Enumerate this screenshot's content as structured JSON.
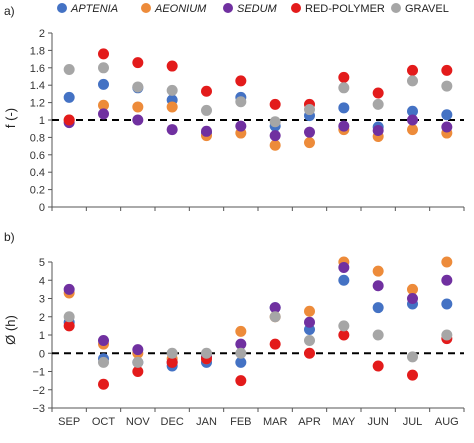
{
  "chart_data": [
    {
      "type": "scatter",
      "panel_label": "a)",
      "ylabel": "f (-)",
      "ylim": [
        0,
        2
      ],
      "yticks": [
        "0",
        "0.2",
        "0.4",
        "0.6",
        "0.8",
        "1",
        "1.2",
        "1.4",
        "1.6",
        "1.8",
        "2"
      ],
      "categories": [
        "SEP",
        "OCT",
        "NOV",
        "DEC",
        "JAN",
        "FEB",
        "MAR",
        "APR",
        "MAY",
        "JUN",
        "JUL",
        "AUG"
      ],
      "reference_line": 1,
      "legend": [
        {
          "name": "APTENIA",
          "italic": true
        },
        {
          "name": "AEONIUM",
          "italic": true
        },
        {
          "name": "SEDUM",
          "italic": true
        },
        {
          "name": "RED-POLYMER",
          "italic": false
        },
        {
          "name": "GRAVEL",
          "italic": false
        }
      ],
      "series": [
        {
          "name": "APTENIA",
          "color": "#4472c4",
          "values": [
            1.26,
            1.41,
            1.37,
            1.23,
            0.85,
            1.26,
            0.93,
            1.05,
            1.14,
            0.92,
            1.1,
            1.06
          ]
        },
        {
          "name": "AEONIUM",
          "color": "#ed8b3a",
          "values": [
            1.0,
            1.17,
            1.15,
            1.15,
            0.82,
            0.85,
            0.71,
            0.74,
            0.89,
            0.81,
            0.89,
            0.85
          ]
        },
        {
          "name": "SEDUM",
          "color": "#7030a0",
          "values": [
            0.97,
            1.07,
            1.0,
            0.89,
            0.87,
            0.93,
            0.82,
            0.86,
            0.93,
            0.88,
            1.0,
            0.92
          ]
        },
        {
          "name": "RED-POLYMER",
          "color": "#e31b1b",
          "values": [
            1.0,
            1.76,
            1.66,
            1.62,
            1.33,
            1.45,
            1.18,
            1.18,
            1.49,
            1.31,
            1.57,
            1.57
          ]
        },
        {
          "name": "GRAVEL",
          "color": "#a6a6a6",
          "values": [
            1.58,
            1.6,
            1.38,
            1.34,
            1.11,
            1.21,
            0.98,
            1.12,
            1.37,
            1.18,
            1.45,
            1.39
          ]
        }
      ]
    },
    {
      "type": "scatter",
      "panel_label": "b)",
      "ylabel": "Ø (h)",
      "ylim": [
        -3,
        5
      ],
      "yticks": [
        "−3",
        "−2",
        "−1",
        "0",
        "1",
        "2",
        "3",
        "4",
        "5"
      ],
      "categories": [
        "SEP",
        "OCT",
        "NOV",
        "DEC",
        "JAN",
        "FEB",
        "MAR",
        "APR",
        "MAY",
        "JUN",
        "JUL",
        "AUG"
      ],
      "reference_line": 0,
      "series": [
        {
          "name": "APTENIA",
          "color": "#4472c4",
          "values": [
            1.7,
            -0.3,
            -0.5,
            -0.7,
            -0.5,
            -0.5,
            2.5,
            1.3,
            4.0,
            2.5,
            2.7,
            2.7
          ]
        },
        {
          "name": "AEONIUM",
          "color": "#ed8b3a",
          "values": [
            3.3,
            0.5,
            0.0,
            -0.3,
            -0.3,
            1.2,
            2.0,
            2.3,
            5.0,
            4.5,
            3.5,
            5.0
          ]
        },
        {
          "name": "SEDUM",
          "color": "#7030a0",
          "values": [
            3.5,
            0.7,
            0.2,
            -0.5,
            -0.2,
            0.5,
            2.5,
            1.7,
            4.7,
            3.7,
            3.0,
            4.0
          ]
        },
        {
          "name": "RED-POLYMER",
          "color": "#e31b1b",
          "values": [
            1.5,
            -1.7,
            -1.0,
            -0.5,
            -0.3,
            -1.5,
            0.5,
            0.0,
            1.0,
            -0.7,
            -1.2,
            0.8
          ]
        },
        {
          "name": "GRAVEL",
          "color": "#a6a6a6",
          "values": [
            2.0,
            -0.5,
            -0.5,
            0.0,
            0.0,
            0.0,
            2.0,
            0.7,
            1.5,
            1.0,
            -0.2,
            1.0
          ]
        }
      ]
    }
  ]
}
